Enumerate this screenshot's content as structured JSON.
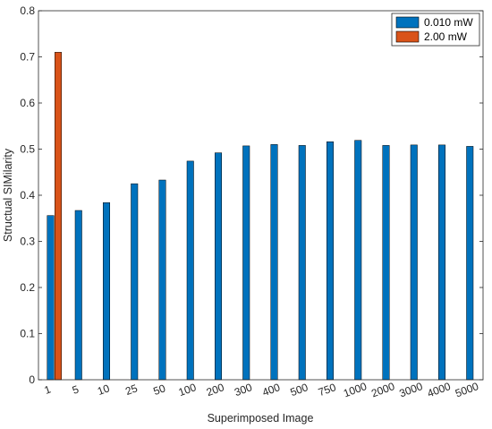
{
  "chart_data": {
    "type": "bar",
    "xlabel": "Superimposed Image",
    "ylabel": "Structual SIMilarity",
    "ylim": [
      0,
      0.8
    ],
    "yticks": [
      "0",
      "0.1",
      "0.2",
      "0.3",
      "0.4",
      "0.5",
      "0.6",
      "0.7",
      "0.8"
    ],
    "categories": [
      "1",
      "5",
      "10",
      "25",
      "50",
      "100",
      "200",
      "300",
      "400",
      "500",
      "750",
      "1000",
      "2000",
      "3000",
      "4000",
      "5000"
    ],
    "grid": false,
    "legend_position": "top-right",
    "series": [
      {
        "name": "0.010 mW",
        "color": "#0072BD",
        "values": [
          0.356,
          0.367,
          0.384,
          0.425,
          0.433,
          0.474,
          0.492,
          0.507,
          0.51,
          0.508,
          0.516,
          0.519,
          0.508,
          0.509,
          0.509,
          0.506
        ]
      },
      {
        "name": "2.00 mW",
        "color": "#D95319",
        "values": [
          0.71,
          null,
          null,
          null,
          null,
          null,
          null,
          null,
          null,
          null,
          null,
          null,
          null,
          null,
          null,
          null
        ]
      }
    ]
  }
}
